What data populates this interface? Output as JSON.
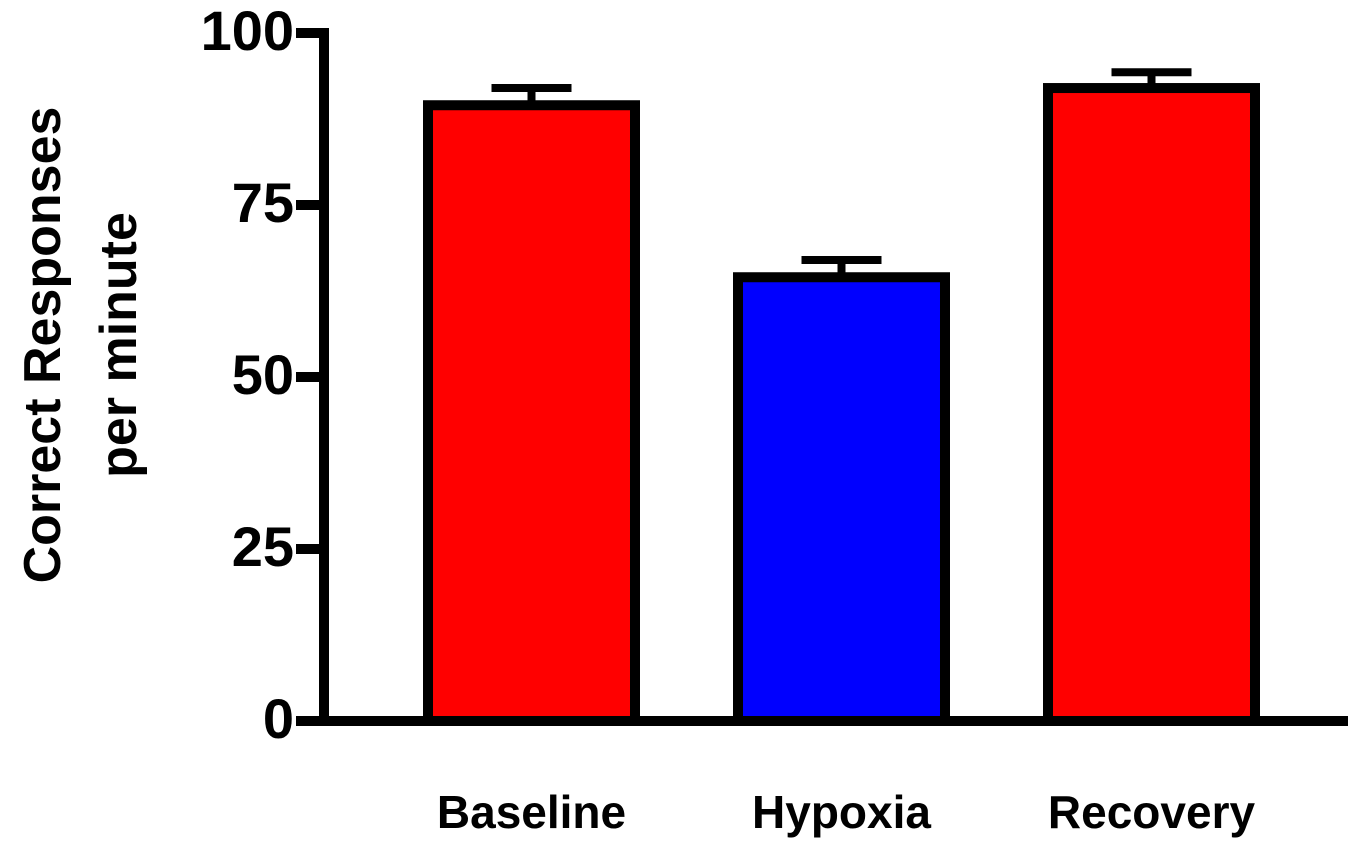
{
  "chart_data": {
    "type": "bar",
    "title": "",
    "xlabel": "",
    "ylabel_line1": "Correct  Responses",
    "ylabel_line2": "per minute",
    "categories": [
      "Baseline",
      "Hypoxia",
      "Recovery"
    ],
    "values": [
      89.5,
      64.5,
      92
    ],
    "errors": [
      2.5,
      2.5,
      2.3
    ],
    "colors": [
      "#ff0000",
      "#0000ff",
      "#ff0000"
    ],
    "ylim": [
      0,
      100
    ],
    "yticks": [
      0,
      25,
      50,
      75,
      100
    ],
    "grid": false,
    "legend": "none"
  }
}
